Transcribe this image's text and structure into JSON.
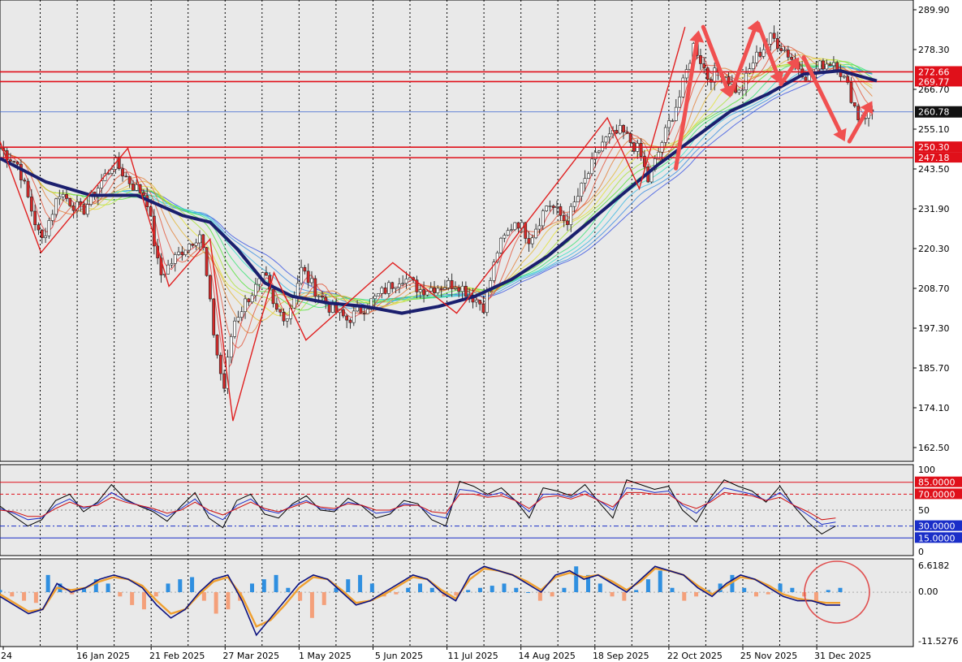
{
  "colors": {
    "plot_bg": "#e9e9e9",
    "axis_bg": "#ffffff",
    "grid": "#000000",
    "resistance_line": "#e0101a",
    "current_price_line": "#3a66d0",
    "current_price_badge": "#111111",
    "level_badge": "#e0101a",
    "oscillator_blue_badge": "#1a2ec8",
    "ma_thick": "#1b1f6e",
    "candle_up": "#2b8a3e",
    "candle_down": "#d42a2a",
    "zigzag": "#e02020",
    "arrow": "#f05050",
    "hist_pos": "#2f8fe0",
    "hist_neg": "#f4a07a",
    "macd_line": "#0c1280",
    "signal_line": "#f0a030",
    "stoch_k": "#000000",
    "stoch_d": "#1a2ec8",
    "stoch_rsi": "#d01010",
    "circle": "#e05050"
  },
  "chart_data": [
    {
      "type": "candlestick",
      "title": "",
      "xlabel": "",
      "ylabel": "",
      "ylim": [
        157.0,
        294.0
      ],
      "y_ticks": [
        "289.90",
        "278.30",
        "266.70",
        "255.10",
        "243.50",
        "231.90",
        "220.30",
        "208.70",
        "197.30",
        "185.70",
        "174.10",
        "162.50"
      ],
      "x_tick_labels": [
        "24",
        "16 Jan 2025",
        "21 Feb 2025",
        "27 Mar 2025",
        "1 May 2025",
        "5 Jun 2025",
        "11 Jul 2025",
        "14 Aug 2025",
        "18 Sep 2025",
        "22 Oct 2025",
        "25 Nov 2025",
        "31 Dec 2025"
      ],
      "current_price": "260.78",
      "horizontal_levels": [
        "272.66",
        "269.77",
        "250.30",
        "247.18"
      ],
      "close_path": [
        [
          0,
          250
        ],
        [
          0.02,
          245
        ],
        [
          0.045,
          222
        ],
        [
          0.065,
          237
        ],
        [
          0.09,
          231
        ],
        [
          0.125,
          246
        ],
        [
          0.145,
          239
        ],
        [
          0.16,
          236
        ],
        [
          0.175,
          212
        ],
        [
          0.2,
          220
        ],
        [
          0.22,
          225
        ],
        [
          0.235,
          193
        ],
        [
          0.245,
          178
        ],
        [
          0.255,
          198
        ],
        [
          0.27,
          205
        ],
        [
          0.29,
          212
        ],
        [
          0.3,
          202
        ],
        [
          0.315,
          200
        ],
        [
          0.33,
          214
        ],
        [
          0.345,
          208
        ],
        [
          0.36,
          203
        ],
        [
          0.38,
          199
        ],
        [
          0.4,
          203
        ],
        [
          0.44,
          212
        ],
        [
          0.46,
          208
        ],
        [
          0.5,
          210
        ],
        [
          0.53,
          203
        ],
        [
          0.545,
          220
        ],
        [
          0.565,
          229
        ],
        [
          0.58,
          223
        ],
        [
          0.6,
          234
        ],
        [
          0.62,
          228
        ],
        [
          0.64,
          240
        ],
        [
          0.66,
          252
        ],
        [
          0.68,
          255
        ],
        [
          0.7,
          249
        ],
        [
          0.71,
          240
        ],
        [
          0.725,
          252
        ],
        [
          0.745,
          266
        ],
        [
          0.76,
          281
        ],
        [
          0.775,
          271
        ],
        [
          0.79,
          273
        ],
        [
          0.81,
          266
        ],
        [
          0.825,
          276
        ],
        [
          0.845,
          283
        ],
        [
          0.86,
          279
        ],
        [
          0.875,
          274
        ],
        [
          0.885,
          271
        ],
        [
          0.9,
          275
        ],
        [
          0.915,
          276
        ],
        [
          0.93,
          267
        ],
        [
          0.94,
          259
        ],
        [
          0.955,
          261
        ]
      ],
      "thick_ma_path": [
        [
          0,
          247
        ],
        [
          0.05,
          240
        ],
        [
          0.1,
          236
        ],
        [
          0.15,
          236
        ],
        [
          0.2,
          230
        ],
        [
          0.23,
          228
        ],
        [
          0.26,
          220
        ],
        [
          0.29,
          210
        ],
        [
          0.32,
          206
        ],
        [
          0.36,
          204
        ],
        [
          0.4,
          203
        ],
        [
          0.44,
          201
        ],
        [
          0.48,
          203
        ],
        [
          0.52,
          206
        ],
        [
          0.56,
          211
        ],
        [
          0.6,
          218
        ],
        [
          0.64,
          227
        ],
        [
          0.68,
          236
        ],
        [
          0.72,
          245
        ],
        [
          0.76,
          253
        ],
        [
          0.8,
          261
        ],
        [
          0.84,
          266
        ],
        [
          0.88,
          272
        ],
        [
          0.92,
          273
        ],
        [
          0.96,
          270
        ]
      ],
      "zigzag": [
        [
          0.0,
          252
        ],
        [
          0.045,
          219
        ],
        [
          0.14,
          250
        ],
        [
          0.185,
          209
        ],
        [
          0.23,
          223
        ],
        [
          0.255,
          169
        ],
        [
          0.3,
          213
        ],
        [
          0.335,
          193
        ],
        [
          0.43,
          216
        ],
        [
          0.5,
          201
        ],
        [
          0.665,
          259
        ],
        [
          0.7,
          238
        ],
        [
          0.75,
          286
        ]
      ],
      "arrows": [
        [
          0.74,
          244,
          0.765,
          285
        ],
        [
          0.77,
          286,
          0.8,
          265
        ],
        [
          0.8,
          266,
          0.83,
          288
        ],
        [
          0.83,
          287,
          0.855,
          269
        ],
        [
          0.855,
          269,
          0.875,
          277
        ],
        [
          0.88,
          277,
          0.925,
          252
        ],
        [
          0.93,
          252,
          0.955,
          264
        ]
      ]
    },
    {
      "type": "line",
      "title": "",
      "ylim": [
        0,
        100
      ],
      "y_ticks": [
        "100",
        "50",
        "0"
      ],
      "levels": [
        "85.0000",
        "70.0000",
        "30.0000",
        "15.0000"
      ],
      "series": [
        {
          "values": [
            55,
            42,
            30,
            38,
            62,
            70,
            48,
            60,
            82,
            64,
            55,
            48,
            36,
            55,
            72,
            40,
            28,
            62,
            70,
            45,
            40,
            58,
            68,
            50,
            48,
            65,
            55,
            40,
            45,
            62,
            58,
            38,
            30,
            86,
            80,
            70,
            78,
            62,
            40,
            78,
            74,
            68,
            82,
            60,
            40,
            88,
            82,
            76,
            80,
            50,
            35,
            65,
            88,
            80,
            74,
            60,
            80,
            55,
            35,
            20,
            30
          ]
        },
        {
          "values": [
            52,
            46,
            38,
            40,
            56,
            64,
            52,
            58,
            72,
            62,
            56,
            50,
            42,
            52,
            64,
            46,
            38,
            56,
            64,
            50,
            46,
            56,
            62,
            52,
            50,
            60,
            56,
            46,
            48,
            58,
            56,
            44,
            40,
            76,
            74,
            68,
            72,
            62,
            48,
            70,
            70,
            66,
            74,
            62,
            50,
            78,
            76,
            72,
            74,
            56,
            46,
            62,
            78,
            74,
            70,
            62,
            72,
            56,
            44,
            32,
            35
          ]
        },
        {
          "values": [
            50,
            48,
            42,
            42,
            52,
            60,
            54,
            56,
            66,
            60,
            56,
            52,
            46,
            50,
            60,
            50,
            44,
            52,
            60,
            52,
            48,
            54,
            60,
            54,
            52,
            58,
            56,
            50,
            50,
            56,
            56,
            48,
            46,
            70,
            70,
            66,
            68,
            62,
            52,
            66,
            68,
            64,
            70,
            62,
            54,
            72,
            72,
            70,
            70,
            58,
            52,
            60,
            72,
            70,
            68,
            62,
            66,
            56,
            48,
            38,
            40
          ]
        }
      ]
    },
    {
      "type": "bar",
      "title": "",
      "ylim": [
        -11.5276,
        6.6182
      ],
      "y_ticks": [
        "6.6182",
        "0.00",
        "-11.5276"
      ],
      "series": [
        {
          "name": "",
          "values": [
            0.5,
            -1,
            -2,
            -2.5,
            4,
            2,
            -0.5,
            1,
            3,
            2,
            -1,
            -3,
            -4,
            -1,
            2,
            3,
            3.5,
            -2,
            -5,
            -4,
            -2,
            2,
            3,
            4,
            1,
            -2,
            -6,
            -3,
            1,
            3,
            4,
            2,
            -1,
            -0.5,
            1,
            2,
            1,
            -1,
            -0.8,
            0.5,
            1,
            1.5,
            2,
            1,
            0,
            -2,
            -1,
            1,
            6,
            4,
            2,
            -1,
            -2,
            0.5,
            3,
            5,
            1,
            -2,
            -1,
            0.5,
            2,
            4,
            1,
            -1,
            -0.5,
            2,
            1,
            -1,
            -2,
            0.5,
            1
          ]
        },
        {
          "name": "",
          "values": [
            -1,
            -3,
            -5,
            -4,
            2,
            0,
            1,
            3,
            4,
            3,
            1,
            -3,
            -6,
            -4,
            0,
            3,
            4,
            -2,
            -10,
            -6,
            -2,
            2,
            4,
            3,
            0,
            -3,
            -2,
            0,
            2,
            4,
            3,
            0,
            -2,
            4,
            6,
            5,
            4,
            2,
            0,
            4,
            5,
            3,
            4,
            2,
            0,
            3,
            6,
            5,
            4,
            1,
            -1,
            2,
            4,
            3,
            1,
            -1,
            -2,
            -2,
            -3,
            -3
          ]
        },
        {
          "name": "",
          "values": [
            -0.5,
            -2.5,
            -4.5,
            -4,
            1,
            0.5,
            1,
            2.5,
            3.5,
            3,
            1.5,
            -2,
            -5,
            -4,
            -0.5,
            2.5,
            3.5,
            -1,
            -8,
            -6.5,
            -3,
            1,
            3.5,
            3,
            0.5,
            -2.5,
            -2,
            -0.5,
            1.5,
            3.5,
            3,
            0.5,
            -1.5,
            3,
            5.5,
            5,
            4,
            2.5,
            0.5,
            3.5,
            4.5,
            3.5,
            4,
            2.5,
            0.5,
            2.5,
            5.5,
            5,
            4,
            1.5,
            -0.5,
            1.5,
            3.5,
            3,
            1.5,
            -0.5,
            -1.5,
            -2,
            -2.5,
            -2.5
          ]
        }
      ]
    }
  ]
}
